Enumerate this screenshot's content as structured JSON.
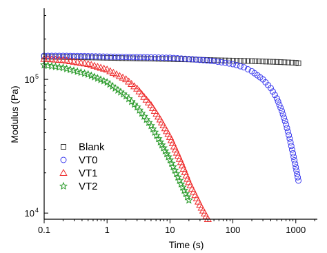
{
  "chart_data": {
    "type": "scatter",
    "xlabel": "Time (s)",
    "ylabel": "Modulus (Pa)",
    "xscale": "log",
    "yscale": "log",
    "xlim": [
      0.1,
      2200
    ],
    "ylim": [
      9000,
      340000
    ],
    "x_ticks": [
      {
        "value": 0.1,
        "label": "0.1"
      },
      {
        "value": 1,
        "label": "1"
      },
      {
        "value": 10,
        "label": "10"
      },
      {
        "value": 100,
        "label": "100"
      },
      {
        "value": 1000,
        "label": "1000"
      }
    ],
    "y_ticks": [
      {
        "value": 10000,
        "label": "10",
        "exp": "4"
      },
      {
        "value": 100000,
        "label": "10",
        "exp": "5"
      }
    ],
    "legend_position": "lower-left",
    "series": [
      {
        "name": "Blank",
        "marker": "square",
        "color": "#333333",
        "x": [
          0.1,
          0.2,
          0.5,
          1,
          2,
          5,
          10,
          20,
          50,
          100,
          200,
          500,
          1000,
          1100
        ],
        "y": [
          148000,
          147000,
          146000,
          145000,
          144000,
          143000,
          142000,
          141000,
          139000,
          138000,
          137000,
          135000,
          133000,
          132000
        ]
      },
      {
        "name": "VT0",
        "marker": "circle",
        "color": "#3a3aee",
        "x": [
          0.1,
          0.2,
          0.5,
          1,
          2,
          5,
          10,
          20,
          50,
          100,
          150,
          200,
          300,
          400,
          500,
          600,
          700,
          800,
          900,
          1000,
          1100
        ],
        "y": [
          150000,
          150000,
          149000,
          148000,
          147000,
          146000,
          145000,
          142000,
          137000,
          130000,
          123000,
          115000,
          100000,
          86000,
          72000,
          58000,
          46000,
          36000,
          28000,
          22000,
          17500
        ]
      },
      {
        "name": "VT1",
        "marker": "triangle",
        "color": "#ee2a2a",
        "x": [
          0.1,
          0.2,
          0.5,
          1,
          2,
          3,
          5,
          7,
          10,
          15,
          20,
          30,
          40
        ],
        "y": [
          142000,
          139000,
          130000,
          118000,
          100000,
          85000,
          64000,
          50000,
          37000,
          24000,
          17000,
          11500,
          9000
        ]
      },
      {
        "name": "VT2",
        "marker": "star",
        "color": "#2a9a2a",
        "x": [
          0.1,
          0.2,
          0.5,
          1,
          2,
          3,
          5,
          7,
          10,
          15,
          20
        ],
        "y": [
          128000,
          122000,
          109000,
          95000,
          75000,
          62000,
          45000,
          34000,
          25000,
          16500,
          12500
        ]
      }
    ]
  }
}
